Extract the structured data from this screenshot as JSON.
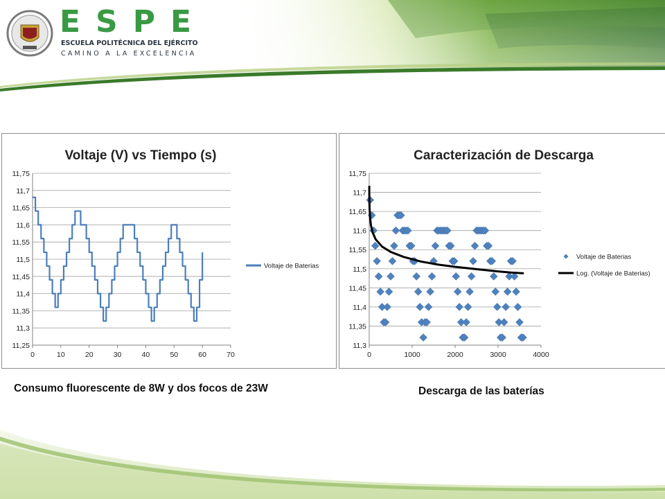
{
  "header": {
    "brand": "ESPE",
    "school_name": "ESCUELA POLITÉCNICA DEL EJÉRCITO",
    "motto": "CAMINO A LA EXCELENCIA",
    "colors": {
      "brand_green": "#3a9a44",
      "dark_text": "#2b3540"
    }
  },
  "captions": {
    "left": "Consumo fluorescente de 8W y dos focos de 23W",
    "right": "Descarga de las baterías"
  },
  "chart_data": [
    {
      "type": "line",
      "title": "Voltaje (V) vs Tiempo (s)",
      "xlabel": "",
      "ylabel": "",
      "xlim": [
        0,
        70
      ],
      "ylim": [
        11.25,
        11.75
      ],
      "xticks": [
        0,
        10,
        20,
        30,
        40,
        50,
        60,
        70
      ],
      "yticks": [
        11.25,
        11.3,
        11.35,
        11.4,
        11.45,
        11.5,
        11.55,
        11.6,
        11.65,
        11.7,
        11.75
      ],
      "ytick_labels": [
        "11,25",
        "11,3",
        "11,35",
        "11,4",
        "11,45",
        "11,5",
        "11,55",
        "11,6",
        "11,65",
        "11,7",
        "11,75"
      ],
      "grid": "horizontal",
      "legend": "right",
      "series": [
        {
          "name": "Voltaje de Baterias",
          "color": "#4a7ebb",
          "step": true,
          "x": [
            0,
            1,
            2,
            3,
            4,
            5,
            6,
            7,
            8,
            9,
            10,
            11,
            12,
            13,
            14,
            15,
            16,
            17,
            18,
            19,
            20,
            21,
            22,
            23,
            24,
            25,
            26,
            27,
            28,
            29,
            30,
            31,
            32,
            33,
            34,
            35,
            36,
            37,
            38,
            39,
            40,
            41,
            42,
            43,
            44,
            45,
            46,
            47,
            48,
            49,
            50,
            51,
            52,
            53,
            54,
            55,
            56,
            57,
            58,
            59,
            60
          ],
          "y": [
            11.68,
            11.64,
            11.6,
            11.56,
            11.52,
            11.48,
            11.44,
            11.4,
            11.36,
            11.4,
            11.44,
            11.48,
            11.52,
            11.56,
            11.6,
            11.64,
            11.64,
            11.6,
            11.6,
            11.56,
            11.52,
            11.48,
            11.44,
            11.4,
            11.36,
            11.32,
            11.36,
            11.4,
            11.44,
            11.48,
            11.52,
            11.56,
            11.6,
            11.6,
            11.6,
            11.6,
            11.56,
            11.52,
            11.48,
            11.44,
            11.4,
            11.36,
            11.32,
            11.36,
            11.4,
            11.44,
            11.48,
            11.52,
            11.56,
            11.6,
            11.6,
            11.56,
            11.52,
            11.48,
            11.44,
            11.4,
            11.36,
            11.32,
            11.36,
            11.44,
            11.52
          ]
        }
      ]
    },
    {
      "type": "scatter",
      "title": "Caracterización de Descarga",
      "xlabel": "",
      "ylabel": "",
      "xlim": [
        0,
        4000
      ],
      "ylim": [
        11.3,
        11.75
      ],
      "xticks": [
        0,
        1000,
        2000,
        3000,
        4000
      ],
      "yticks": [
        11.3,
        11.35,
        11.4,
        11.45,
        11.5,
        11.55,
        11.6,
        11.65,
        11.7,
        11.75
      ],
      "ytick_labels": [
        "11,3",
        "11,35",
        "11,4",
        "11,45",
        "11,5",
        "11,55",
        "11,6",
        "11,65",
        "11,7",
        "11,75"
      ],
      "grid": "horizontal",
      "legend": "right",
      "series": [
        {
          "name": "Voltaje de Baterias",
          "color": "#4f81bd",
          "marker": "diamond",
          "x": [
            20,
            60,
            100,
            140,
            180,
            220,
            260,
            300,
            340,
            380,
            420,
            460,
            500,
            540,
            580,
            620,
            660,
            700,
            740,
            780,
            820,
            860,
            900,
            940,
            980,
            1020,
            1060,
            1100,
            1140,
            1180,
            1220,
            1260,
            1300,
            1340,
            1380,
            1420,
            1460,
            1500,
            1540,
            1580,
            1620,
            1660,
            1700,
            1740,
            1780,
            1820,
            1860,
            1900,
            1940,
            1980,
            2020,
            2060,
            2100,
            2140,
            2180,
            2220,
            2260,
            2300,
            2340,
            2380,
            2420,
            2460,
            2500,
            2540,
            2580,
            2620,
            2660,
            2700,
            2740,
            2780,
            2820,
            2860,
            2900,
            2940,
            2980,
            3020,
            3060,
            3100,
            3140,
            3180,
            3220,
            3260,
            3300,
            3340,
            3380,
            3420,
            3460,
            3500,
            3540,
            3580
          ],
          "y": [
            11.68,
            11.64,
            11.6,
            11.56,
            11.52,
            11.48,
            11.44,
            11.4,
            11.36,
            11.36,
            11.4,
            11.44,
            11.48,
            11.52,
            11.56,
            11.6,
            11.64,
            11.64,
            11.64,
            11.6,
            11.6,
            11.6,
            11.6,
            11.56,
            11.56,
            11.52,
            11.52,
            11.48,
            11.44,
            11.4,
            11.36,
            11.32,
            11.36,
            11.36,
            11.4,
            11.44,
            11.48,
            11.52,
            11.56,
            11.6,
            11.6,
            11.6,
            11.6,
            11.6,
            11.6,
            11.6,
            11.56,
            11.56,
            11.52,
            11.52,
            11.48,
            11.44,
            11.4,
            11.36,
            11.32,
            11.32,
            11.36,
            11.4,
            11.44,
            11.48,
            11.52,
            11.56,
            11.6,
            11.6,
            11.6,
            11.6,
            11.6,
            11.6,
            11.56,
            11.56,
            11.52,
            11.52,
            11.48,
            11.44,
            11.4,
            11.36,
            11.32,
            11.32,
            11.36,
            11.4,
            11.44,
            11.48,
            11.52,
            11.52,
            11.48,
            11.44,
            11.4,
            11.36,
            11.32,
            11.32
          ]
        },
        {
          "name": "Log. (Voltaje de Baterias)",
          "color": "#000000",
          "type": "line",
          "x": [
            1,
            2,
            5,
            10,
            20,
            40,
            80,
            150,
            300,
            500,
            800,
            1200,
            1600,
            2000,
            2500,
            3000,
            3300,
            3600
          ],
          "y": [
            11.717,
            11.697,
            11.672,
            11.653,
            11.634,
            11.614,
            11.595,
            11.577,
            11.558,
            11.544,
            11.531,
            11.519,
            11.511,
            11.505,
            11.499,
            11.493,
            11.49,
            11.488
          ]
        }
      ]
    }
  ]
}
